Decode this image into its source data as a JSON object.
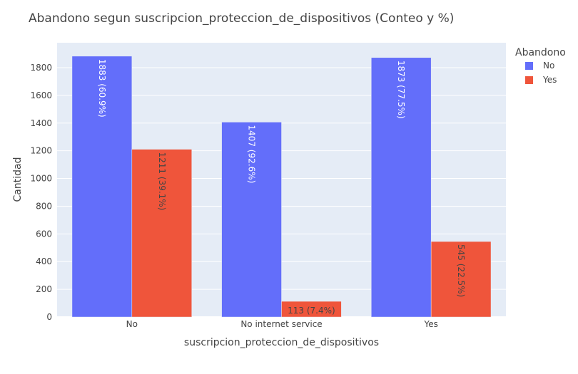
{
  "chart_data": {
    "type": "bar",
    "title": "Abandono segun suscripcion_proteccion_de_dispositivos (Conteo y %)",
    "xlabel": "suscripcion_proteccion_de_dispositivos",
    "ylabel": "Cantidad",
    "categories": [
      "No",
      "No internet service",
      "Yes"
    ],
    "ylim": [
      0,
      1980
    ],
    "yticks": [
      0,
      200,
      400,
      600,
      800,
      1000,
      1200,
      1400,
      1600,
      1800
    ],
    "grid": true,
    "legend": {
      "title": "Abandono",
      "placement": "top-right"
    },
    "series": [
      {
        "name": "No",
        "color": "#636efa",
        "label_color": "#ffffff",
        "values": [
          1883,
          1407,
          1873
        ],
        "labels": [
          "1883 (60.9%)",
          "1407 (92.6%)",
          "1873 (77.5%)"
        ]
      },
      {
        "name": "Yes",
        "color": "#ef553b",
        "label_color": "#444444",
        "values": [
          1211,
          113,
          545
        ],
        "labels": [
          "1211 (39.1%)",
          "113 (7.4%)",
          "545 (22.5%)"
        ]
      }
    ]
  }
}
